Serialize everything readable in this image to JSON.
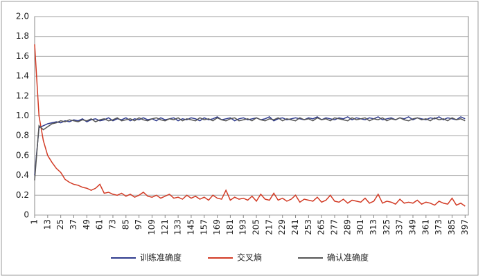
{
  "chart_data": {
    "type": "line",
    "x": [
      1,
      5,
      9,
      13,
      17,
      21,
      25,
      29,
      33,
      37,
      41,
      45,
      49,
      53,
      57,
      61,
      65,
      69,
      73,
      77,
      81,
      85,
      89,
      93,
      97,
      101,
      105,
      109,
      113,
      117,
      121,
      125,
      129,
      133,
      137,
      141,
      145,
      149,
      153,
      157,
      161,
      165,
      169,
      173,
      177,
      181,
      185,
      189,
      193,
      197,
      201,
      205,
      209,
      213,
      217,
      221,
      225,
      229,
      233,
      237,
      241,
      245,
      249,
      253,
      257,
      261,
      265,
      269,
      273,
      277,
      281,
      285,
      289,
      293,
      297,
      301,
      305,
      309,
      313,
      317,
      321,
      325,
      329,
      333,
      337,
      341,
      345,
      349,
      353,
      357,
      361,
      365,
      369,
      373,
      377,
      381,
      385,
      389,
      393,
      397
    ],
    "xlim": [
      1,
      400
    ],
    "xticks": [
      1,
      13,
      25,
      37,
      49,
      61,
      73,
      85,
      97,
      109,
      121,
      133,
      145,
      157,
      169,
      181,
      193,
      205,
      217,
      229,
      241,
      253,
      265,
      277,
      289,
      301,
      313,
      325,
      337,
      349,
      361,
      373,
      385,
      397
    ],
    "ylim": [
      0,
      2
    ],
    "yticks": [
      0,
      0.2,
      0.4,
      0.6,
      0.8,
      {
        "value": 1,
        "label": "1.0"
      },
      1.2,
      1.4,
      1.6,
      1.8,
      {
        "value": 2,
        "label": "2.0"
      }
    ],
    "grid": true,
    "legend": "bottom",
    "series": [
      {
        "name": "训练准确度",
        "color": "#2e3a8c",
        "values": [
          0.4,
          0.88,
          0.9,
          0.92,
          0.93,
          0.94,
          0.93,
          0.95,
          0.94,
          0.96,
          0.95,
          0.97,
          0.94,
          0.96,
          0.97,
          0.95,
          0.96,
          0.98,
          0.95,
          0.97,
          0.96,
          0.98,
          0.95,
          0.97,
          0.96,
          0.98,
          0.96,
          0.97,
          0.95,
          0.98,
          0.96,
          0.97,
          0.98,
          0.95,
          0.97,
          0.96,
          0.98,
          0.97,
          0.95,
          0.98,
          0.96,
          0.97,
          0.99,
          0.96,
          0.97,
          0.98,
          0.95,
          0.97,
          0.98,
          0.96,
          0.97,
          0.98,
          0.96,
          0.97,
          0.99,
          0.95,
          0.97,
          0.98,
          0.96,
          0.97,
          0.98,
          0.97,
          0.96,
          0.98,
          0.97,
          0.99,
          0.96,
          0.98,
          0.97,
          0.96,
          0.98,
          0.97,
          0.99,
          0.96,
          0.98,
          0.97,
          0.96,
          0.98,
          0.97,
          0.99,
          0.96,
          0.97,
          0.98,
          0.96,
          0.98,
          0.97,
          0.99,
          0.96,
          0.98,
          0.97,
          0.96,
          0.98,
          0.97,
          0.99,
          0.96,
          0.98,
          0.97,
          0.96,
          0.99,
          0.97
        ]
      },
      {
        "name": "交叉熵",
        "color": "#d23a24",
        "values": [
          1.72,
          1.0,
          0.75,
          0.6,
          0.53,
          0.47,
          0.43,
          0.36,
          0.33,
          0.31,
          0.3,
          0.28,
          0.27,
          0.25,
          0.27,
          0.31,
          0.22,
          0.23,
          0.21,
          0.2,
          0.22,
          0.19,
          0.21,
          0.18,
          0.2,
          0.23,
          0.19,
          0.18,
          0.2,
          0.17,
          0.19,
          0.21,
          0.17,
          0.18,
          0.16,
          0.2,
          0.17,
          0.19,
          0.16,
          0.18,
          0.15,
          0.2,
          0.17,
          0.16,
          0.25,
          0.15,
          0.18,
          0.16,
          0.17,
          0.15,
          0.19,
          0.14,
          0.21,
          0.16,
          0.15,
          0.22,
          0.15,
          0.17,
          0.14,
          0.16,
          0.2,
          0.13,
          0.16,
          0.15,
          0.14,
          0.18,
          0.13,
          0.15,
          0.2,
          0.14,
          0.13,
          0.16,
          0.12,
          0.15,
          0.14,
          0.13,
          0.17,
          0.12,
          0.14,
          0.21,
          0.12,
          0.14,
          0.13,
          0.11,
          0.16,
          0.12,
          0.13,
          0.12,
          0.15,
          0.11,
          0.13,
          0.12,
          0.1,
          0.14,
          0.12,
          0.11,
          0.17,
          0.1,
          0.12,
          0.09
        ]
      },
      {
        "name": "确认准确度",
        "color": "#555555",
        "values": [
          0.35,
          0.9,
          0.86,
          0.89,
          0.92,
          0.93,
          0.95,
          0.94,
          0.96,
          0.95,
          0.94,
          0.96,
          0.95,
          0.97,
          0.94,
          0.96,
          0.97,
          0.95,
          0.96,
          0.98,
          0.95,
          0.96,
          0.97,
          0.95,
          0.98,
          0.96,
          0.95,
          0.97,
          0.98,
          0.96,
          0.95,
          0.97,
          0.96,
          0.98,
          0.95,
          0.97,
          0.96,
          0.95,
          0.98,
          0.96,
          0.97,
          0.95,
          0.98,
          0.96,
          0.95,
          0.97,
          0.98,
          0.95,
          0.96,
          0.97,
          0.95,
          0.98,
          0.96,
          0.95,
          0.97,
          0.96,
          0.98,
          0.95,
          0.97,
          0.96,
          0.95,
          0.98,
          0.96,
          0.97,
          0.95,
          0.98,
          0.96,
          0.97,
          0.95,
          0.98,
          0.97,
          0.96,
          0.95,
          0.98,
          0.96,
          0.97,
          0.98,
          0.95,
          0.97,
          0.96,
          0.98,
          0.95,
          0.97,
          0.96,
          0.98,
          0.96,
          0.95,
          0.97,
          0.98,
          0.96,
          0.97,
          0.95,
          0.98,
          0.96,
          0.97,
          0.95,
          0.98,
          0.96,
          0.97,
          0.95
        ]
      }
    ]
  }
}
